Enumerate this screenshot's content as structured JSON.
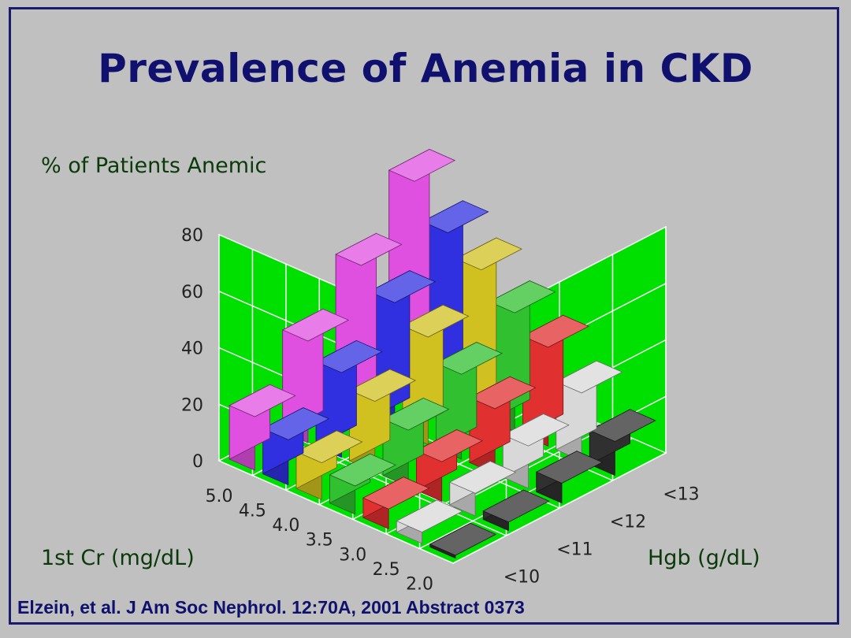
{
  "title": "Prevalence of Anemia in CKD",
  "citation": "Elzein, et al. J Am Soc Nephrol. 12:70A, 2001  Abstract 0373",
  "chart_data": {
    "type": "bar3d",
    "title": "Prevalence of Anemia in CKD",
    "zlabel": "% of Patients Anemic",
    "xlabel": "1st Cr (mg/dL)",
    "ylabel": "Hgb (g/dL)",
    "zlim": [
      0,
      80
    ],
    "z_ticks": [
      "0",
      "20",
      "40",
      "60",
      "80"
    ],
    "x_categories": [
      "5.0",
      "4.5",
      "4.0",
      "3.5",
      "3.0",
      "2.5",
      "2.0"
    ],
    "y_categories": [
      "<10",
      "<11",
      "<12",
      "<13"
    ],
    "grid": true,
    "wall_color": "#00e000",
    "colors": [
      "#e050e0",
      "#3030e0",
      "#d0c020",
      "#30c030",
      "#e03030",
      "#d8d8d8",
      "#303030"
    ],
    "values": [
      [
        19,
        36,
        53,
        73
      ],
      [
        16,
        30,
        45,
        60
      ],
      [
        13,
        25,
        38,
        52
      ],
      [
        10,
        20,
        30,
        42
      ],
      [
        7,
        14,
        23,
        35
      ],
      [
        4,
        8,
        15,
        24
      ],
      [
        1,
        3,
        7,
        12
      ]
    ]
  }
}
